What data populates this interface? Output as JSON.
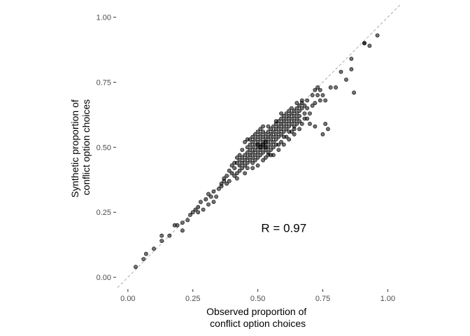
{
  "chart_data": {
    "type": "scatter",
    "title": "",
    "xlabel_lines": [
      "Observed proportion of",
      "conflict option choices"
    ],
    "ylabel_lines": [
      "Synthetic proportion of",
      "conflict option choices"
    ],
    "xlim": [
      -0.04,
      1.05
    ],
    "ylim": [
      -0.04,
      1.05
    ],
    "x_ticks": [
      0.0,
      0.25,
      0.5,
      0.75,
      1.0
    ],
    "x_tick_labels": [
      "0.00",
      "0.25",
      "0.50",
      "0.75",
      "1.00"
    ],
    "y_ticks": [
      0.0,
      0.25,
      0.5,
      0.75,
      1.0
    ],
    "y_tick_labels": [
      "0.00",
      "0.25",
      "0.50",
      "0.75",
      "1.00"
    ],
    "grid": false,
    "reference_line": {
      "type": "identity",
      "style": "dashed",
      "color": "#999999"
    },
    "annotation": {
      "text": "R = 0.97",
      "x": 0.6,
      "y": 0.19
    },
    "point_color": "#000000",
    "point_opacity": 0.55,
    "series": [
      {
        "points": [
          [
            0.03,
            0.04
          ],
          [
            0.06,
            0.07
          ],
          [
            0.07,
            0.09
          ],
          [
            0.1,
            0.11
          ],
          [
            0.13,
            0.14
          ],
          [
            0.13,
            0.16
          ],
          [
            0.16,
            0.16
          ],
          [
            0.18,
            0.2
          ],
          [
            0.21,
            0.21
          ],
          [
            0.21,
            0.18
          ],
          [
            0.23,
            0.22
          ],
          [
            0.25,
            0.25
          ],
          [
            0.26,
            0.26
          ],
          [
            0.27,
            0.27
          ],
          [
            0.27,
            0.25
          ],
          [
            0.28,
            0.29
          ],
          [
            0.29,
            0.26
          ],
          [
            0.31,
            0.28
          ],
          [
            0.31,
            0.32
          ],
          [
            0.32,
            0.31
          ],
          [
            0.33,
            0.29
          ],
          [
            0.33,
            0.33
          ],
          [
            0.34,
            0.31
          ],
          [
            0.36,
            0.36
          ],
          [
            0.37,
            0.37
          ],
          [
            0.37,
            0.38
          ],
          [
            0.38,
            0.36
          ],
          [
            0.38,
            0.39
          ],
          [
            0.39,
            0.41
          ],
          [
            0.39,
            0.37
          ],
          [
            0.4,
            0.4
          ],
          [
            0.41,
            0.39
          ],
          [
            0.41,
            0.42
          ],
          [
            0.42,
            0.4
          ],
          [
            0.42,
            0.44
          ],
          [
            0.42,
            0.38
          ],
          [
            0.43,
            0.41
          ],
          [
            0.43,
            0.45
          ],
          [
            0.43,
            0.43
          ],
          [
            0.44,
            0.42
          ],
          [
            0.44,
            0.46
          ],
          [
            0.44,
            0.44
          ],
          [
            0.45,
            0.43
          ],
          [
            0.45,
            0.47
          ],
          [
            0.45,
            0.45
          ],
          [
            0.45,
            0.4
          ],
          [
            0.46,
            0.48
          ],
          [
            0.46,
            0.44
          ],
          [
            0.46,
            0.46
          ],
          [
            0.46,
            0.5
          ],
          [
            0.47,
            0.45
          ],
          [
            0.47,
            0.49
          ],
          [
            0.47,
            0.47
          ],
          [
            0.47,
            0.51
          ],
          [
            0.48,
            0.46
          ],
          [
            0.48,
            0.5
          ],
          [
            0.48,
            0.48
          ],
          [
            0.48,
            0.52
          ],
          [
            0.48,
            0.44
          ],
          [
            0.49,
            0.49
          ],
          [
            0.49,
            0.51
          ],
          [
            0.49,
            0.47
          ],
          [
            0.49,
            0.53
          ],
          [
            0.49,
            0.45
          ],
          [
            0.5,
            0.5
          ],
          [
            0.5,
            0.52
          ],
          [
            0.5,
            0.48
          ],
          [
            0.5,
            0.54
          ],
          [
            0.5,
            0.46
          ],
          [
            0.5,
            0.51
          ],
          [
            0.51,
            0.49
          ],
          [
            0.51,
            0.53
          ],
          [
            0.51,
            0.51
          ],
          [
            0.51,
            0.55
          ],
          [
            0.51,
            0.47
          ],
          [
            0.51,
            0.5
          ],
          [
            0.52,
            0.52
          ],
          [
            0.52,
            0.5
          ],
          [
            0.52,
            0.54
          ],
          [
            0.52,
            0.48
          ],
          [
            0.52,
            0.56
          ],
          [
            0.52,
            0.51
          ],
          [
            0.53,
            0.53
          ],
          [
            0.53,
            0.51
          ],
          [
            0.53,
            0.49
          ],
          [
            0.53,
            0.55
          ],
          [
            0.53,
            0.5
          ],
          [
            0.53,
            0.52
          ],
          [
            0.54,
            0.54
          ],
          [
            0.54,
            0.52
          ],
          [
            0.54,
            0.5
          ],
          [
            0.54,
            0.56
          ],
          [
            0.54,
            0.48
          ],
          [
            0.55,
            0.55
          ],
          [
            0.55,
            0.53
          ],
          [
            0.55,
            0.51
          ],
          [
            0.55,
            0.57
          ],
          [
            0.55,
            0.49
          ],
          [
            0.56,
            0.56
          ],
          [
            0.56,
            0.54
          ],
          [
            0.56,
            0.52
          ],
          [
            0.56,
            0.58
          ],
          [
            0.57,
            0.57
          ],
          [
            0.57,
            0.55
          ],
          [
            0.57,
            0.53
          ],
          [
            0.57,
            0.51
          ],
          [
            0.57,
            0.59
          ],
          [
            0.58,
            0.58
          ],
          [
            0.58,
            0.56
          ],
          [
            0.58,
            0.54
          ],
          [
            0.58,
            0.6
          ],
          [
            0.59,
            0.59
          ],
          [
            0.59,
            0.57
          ],
          [
            0.59,
            0.55
          ],
          [
            0.59,
            0.61
          ],
          [
            0.59,
            0.52
          ],
          [
            0.6,
            0.6
          ],
          [
            0.6,
            0.58
          ],
          [
            0.6,
            0.62
          ],
          [
            0.6,
            0.56
          ],
          [
            0.61,
            0.61
          ],
          [
            0.61,
            0.59
          ],
          [
            0.61,
            0.57
          ],
          [
            0.61,
            0.63
          ],
          [
            0.62,
            0.62
          ],
          [
            0.62,
            0.6
          ],
          [
            0.62,
            0.58
          ],
          [
            0.62,
            0.64
          ],
          [
            0.63,
            0.63
          ],
          [
            0.63,
            0.61
          ],
          [
            0.63,
            0.59
          ],
          [
            0.63,
            0.65
          ],
          [
            0.64,
            0.64
          ],
          [
            0.64,
            0.62
          ],
          [
            0.64,
            0.6
          ],
          [
            0.64,
            0.57
          ],
          [
            0.65,
            0.65
          ],
          [
            0.65,
            0.63
          ],
          [
            0.65,
            0.61
          ],
          [
            0.65,
            0.67
          ],
          [
            0.66,
            0.66
          ],
          [
            0.66,
            0.64
          ],
          [
            0.66,
            0.62
          ],
          [
            0.67,
            0.67
          ],
          [
            0.67,
            0.65
          ],
          [
            0.67,
            0.68
          ],
          [
            0.68,
            0.63
          ],
          [
            0.68,
            0.66
          ],
          [
            0.69,
            0.61
          ],
          [
            0.69,
            0.65
          ],
          [
            0.7,
            0.59
          ],
          [
            0.7,
            0.63
          ],
          [
            0.71,
            0.66
          ],
          [
            0.72,
            0.72
          ],
          [
            0.72,
            0.58
          ],
          [
            0.73,
            0.7
          ],
          [
            0.73,
            0.73
          ],
          [
            0.74,
            0.68
          ],
          [
            0.74,
            0.72
          ],
          [
            0.75,
            0.7
          ],
          [
            0.75,
            0.55
          ],
          [
            0.76,
            0.59
          ],
          [
            0.76,
            0.68
          ],
          [
            0.77,
            0.57
          ],
          [
            0.78,
            0.73
          ],
          [
            0.8,
            0.73
          ],
          [
            0.82,
            0.79
          ],
          [
            0.84,
            0.76
          ],
          [
            0.86,
            0.8
          ],
          [
            0.86,
            0.84
          ],
          [
            0.87,
            0.71
          ],
          [
            0.91,
            0.9
          ],
          [
            0.91,
            0.9
          ],
          [
            0.93,
            0.89
          ],
          [
            0.96,
            0.93
          ],
          [
            0.45,
            0.52
          ],
          [
            0.47,
            0.53
          ],
          [
            0.49,
            0.55
          ],
          [
            0.51,
            0.57
          ],
          [
            0.53,
            0.46
          ],
          [
            0.55,
            0.47
          ],
          [
            0.56,
            0.5
          ],
          [
            0.58,
            0.51
          ],
          [
            0.6,
            0.54
          ],
          [
            0.62,
            0.56
          ],
          [
            0.64,
            0.58
          ],
          [
            0.66,
            0.6
          ],
          [
            0.48,
            0.42
          ],
          [
            0.44,
            0.49
          ],
          [
            0.46,
            0.53
          ],
          [
            0.5,
            0.43
          ],
          [
            0.52,
            0.45
          ],
          [
            0.54,
            0.58
          ],
          [
            0.57,
            0.6
          ],
          [
            0.59,
            0.63
          ],
          [
            0.61,
            0.54
          ],
          [
            0.63,
            0.56
          ],
          [
            0.65,
            0.59
          ],
          [
            0.68,
            0.61
          ],
          [
            0.41,
            0.44
          ],
          [
            0.4,
            0.43
          ],
          [
            0.36,
            0.35
          ],
          [
            0.35,
            0.34
          ],
          [
            0.3,
            0.3
          ],
          [
            0.24,
            0.24
          ],
          [
            0.19,
            0.2
          ],
          [
            0.5,
            0.56
          ],
          [
            0.52,
            0.58
          ],
          [
            0.54,
            0.47
          ],
          [
            0.56,
            0.47
          ],
          [
            0.58,
            0.49
          ],
          [
            0.6,
            0.51
          ],
          [
            0.62,
            0.53
          ],
          [
            0.64,
            0.55
          ],
          [
            0.66,
            0.57
          ],
          [
            0.67,
            0.59
          ],
          [
            0.69,
            0.68
          ],
          [
            0.71,
            0.7
          ],
          [
            0.72,
            0.67
          ],
          [
            0.48,
            0.54
          ],
          [
            0.46,
            0.42
          ],
          [
            0.43,
            0.47
          ],
          [
            0.42,
            0.46
          ]
        ]
      }
    ]
  }
}
